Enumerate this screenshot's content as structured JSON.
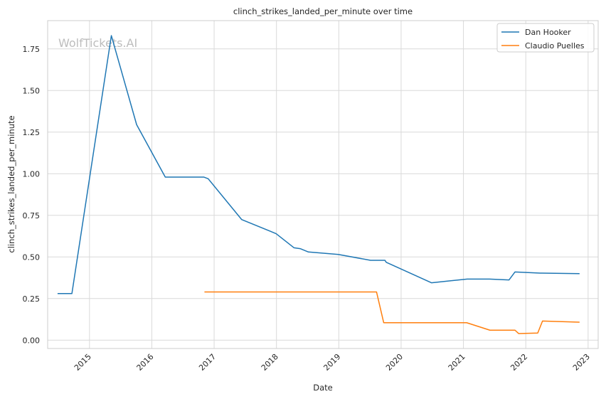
{
  "chart_data": {
    "type": "line",
    "title": "clinch_strikes_landed_per_minute over time",
    "xlabel": "Date",
    "ylabel": "clinch_strikes_landed_per_minute",
    "watermark": "WolfTickets.AI",
    "x_ticks": [
      "2015",
      "2016",
      "2017",
      "2018",
      "2019",
      "2020",
      "2021",
      "2022",
      "2023"
    ],
    "y_ticks": [
      "0.00",
      "0.25",
      "0.50",
      "0.75",
      "1.00",
      "1.25",
      "1.50",
      "1.75"
    ],
    "xlim": [
      "2014-05-01",
      "2023-03-01"
    ],
    "ylim": [
      -0.05,
      1.92
    ],
    "grid": true,
    "legend_position": "top-right",
    "series": [
      {
        "name": "Dan Hooker",
        "color": "#1f77b4",
        "points": [
          [
            "2014-06-28",
            0.28
          ],
          [
            "2014-09-20",
            0.28
          ],
          [
            "2015-05-09",
            1.83
          ],
          [
            "2015-10-04",
            1.295
          ],
          [
            "2016-03-20",
            0.98
          ],
          [
            "2016-11-01",
            0.98
          ],
          [
            "2016-11-27",
            0.97
          ],
          [
            "2017-06-11",
            0.725
          ],
          [
            "2017-12-30",
            0.64
          ],
          [
            "2018-04-14",
            0.555
          ],
          [
            "2018-05-20",
            0.55
          ],
          [
            "2018-07-07",
            0.53
          ],
          [
            "2018-12-29",
            0.515
          ],
          [
            "2019-07-06",
            0.48
          ],
          [
            "2019-09-28",
            0.48
          ],
          [
            "2019-10-06",
            0.468
          ],
          [
            "2020-06-27",
            0.345
          ],
          [
            "2021-01-23",
            0.367
          ],
          [
            "2021-06-02",
            0.367
          ],
          [
            "2021-09-25",
            0.362
          ],
          [
            "2021-10-30",
            0.41
          ],
          [
            "2022-03-26",
            0.403
          ],
          [
            "2022-11-12",
            0.4
          ]
        ]
      },
      {
        "name": "Claudio Puelles",
        "color": "#ff7f0e",
        "points": [
          [
            "2016-11-05",
            0.29
          ],
          [
            "2019-08-10",
            0.29
          ],
          [
            "2019-09-21",
            0.105
          ],
          [
            "2021-01-20",
            0.105
          ],
          [
            "2021-06-05",
            0.06
          ],
          [
            "2021-10-30",
            0.06
          ],
          [
            "2021-11-20",
            0.04
          ],
          [
            "2022-03-12",
            0.043
          ],
          [
            "2022-04-09",
            0.115
          ],
          [
            "2022-11-12",
            0.108
          ]
        ]
      }
    ]
  }
}
